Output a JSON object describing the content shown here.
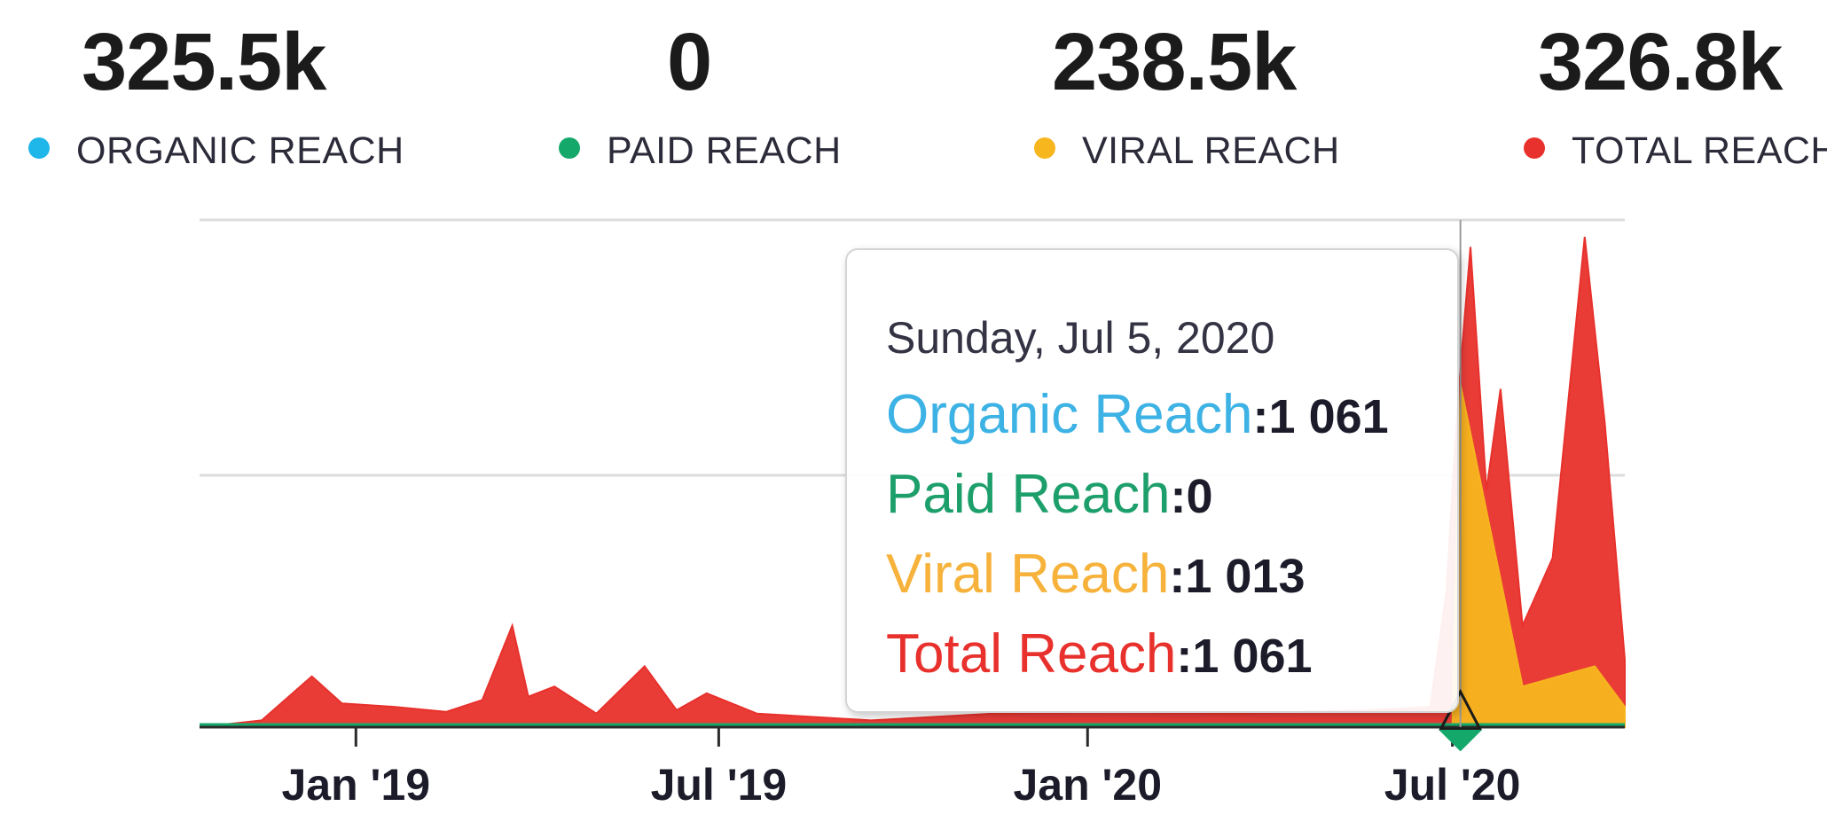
{
  "stats": [
    {
      "value": "325.5k",
      "label": "ORGANIC REACH",
      "color": "#1fb6ea"
    },
    {
      "value": "0",
      "label": "PAID REACH",
      "color": "#15a86b"
    },
    {
      "value": "238.5k",
      "label": "VIRAL REACH",
      "color": "#f7b51e"
    },
    {
      "value": "326.8k",
      "label": "TOTAL REACH",
      "color": "#e8312c"
    }
  ],
  "tooltip": {
    "date": "Sunday, Jul 5, 2020",
    "rows": [
      {
        "name": "Organic Reach",
        "value": "1 061",
        "color": "#3db2e4"
      },
      {
        "name": "Paid Reach",
        "value": "0",
        "color": "#1d9f6b"
      },
      {
        "name": "Viral Reach",
        "value": "1 013",
        "color": "#f6b23a"
      },
      {
        "name": "Total Reach",
        "value": "1 061",
        "color": "#e8312c"
      }
    ]
  },
  "chart_data": {
    "type": "area",
    "x_ticks": [
      "Jan '19",
      "Jul '19",
      "Jan '20",
      "Jul '20"
    ],
    "x_range": [
      "2018-10-15",
      "2020-09-25"
    ],
    "grid": true,
    "legend": "top",
    "series": [
      {
        "name": "Total Reach",
        "color": "#e8312c",
        "points": [
          [
            "2018-10-15",
            0
          ],
          [
            "2018-11-15",
            20
          ],
          [
            "2018-12-10",
            150
          ],
          [
            "2018-12-25",
            70
          ],
          [
            "2019-01-20",
            60
          ],
          [
            "2019-02-15",
            45
          ],
          [
            "2019-03-05",
            80
          ],
          [
            "2019-03-20",
            300
          ],
          [
            "2019-03-28",
            90
          ],
          [
            "2019-04-10",
            120
          ],
          [
            "2019-05-01",
            40
          ],
          [
            "2019-05-25",
            180
          ],
          [
            "2019-06-10",
            50
          ],
          [
            "2019-06-25",
            100
          ],
          [
            "2019-07-20",
            40
          ],
          [
            "2019-09-15",
            20
          ],
          [
            "2019-11-15",
            40
          ],
          [
            "2020-01-15",
            45
          ],
          [
            "2020-03-15",
            40
          ],
          [
            "2020-05-20",
            50
          ],
          [
            "2020-06-20",
            60
          ],
          [
            "2020-06-28",
            400
          ],
          [
            "2020-07-02",
            800
          ],
          [
            "2020-07-05",
            1061
          ],
          [
            "2020-07-10",
            1420
          ],
          [
            "2020-07-18",
            700
          ],
          [
            "2020-07-25",
            1000
          ],
          [
            "2020-08-05",
            300
          ],
          [
            "2020-08-20",
            500
          ],
          [
            "2020-09-05",
            1450
          ],
          [
            "2020-09-15",
            900
          ],
          [
            "2020-09-25",
            200
          ]
        ]
      },
      {
        "name": "Viral Reach",
        "color": "#f7b51e",
        "points": [
          [
            "2020-07-01",
            0
          ],
          [
            "2020-07-05",
            1013
          ],
          [
            "2020-08-05",
            120
          ],
          [
            "2020-09-10",
            180
          ],
          [
            "2020-09-25",
            60
          ]
        ]
      },
      {
        "name": "Paid Reach",
        "color": "#15a86b",
        "points": [
          [
            "2018-10-15",
            0
          ],
          [
            "2020-09-25",
            0
          ]
        ]
      }
    ]
  }
}
